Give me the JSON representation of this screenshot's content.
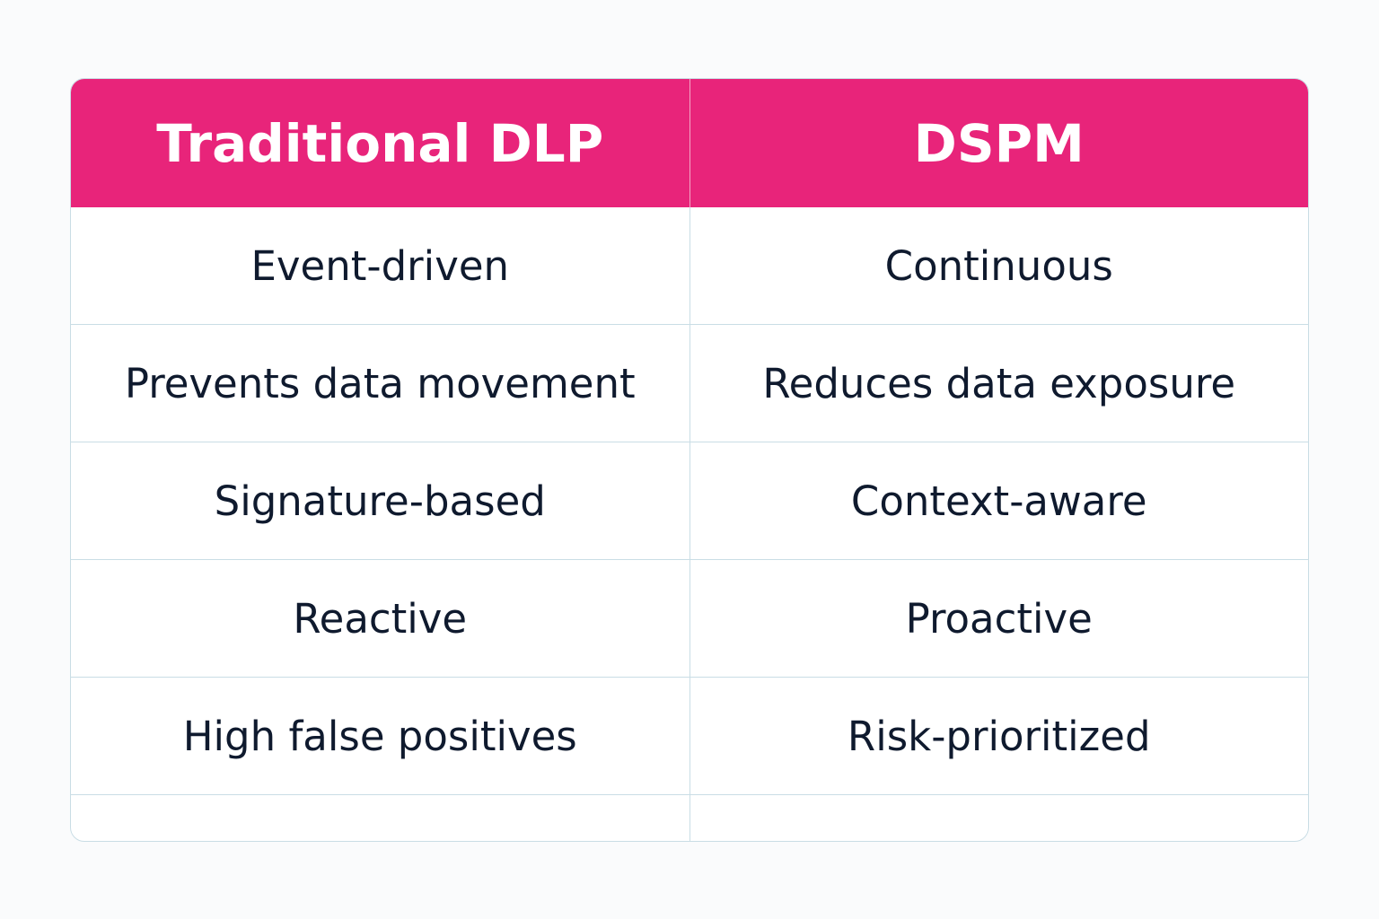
{
  "colors": {
    "header": "#e8247a",
    "text": "#0f1a2e",
    "border": "#c9dde5"
  },
  "headers": [
    "Traditional DLP",
    "DSPM"
  ],
  "rows": [
    [
      "Event-driven",
      "Continuous"
    ],
    [
      "Prevents data movement",
      "Reduces data exposure"
    ],
    [
      "Signature-based",
      "Context-aware"
    ],
    [
      "Reactive",
      "Proactive"
    ],
    [
      "High false positives",
      "Risk-prioritized"
    ],
    [
      "",
      ""
    ]
  ]
}
